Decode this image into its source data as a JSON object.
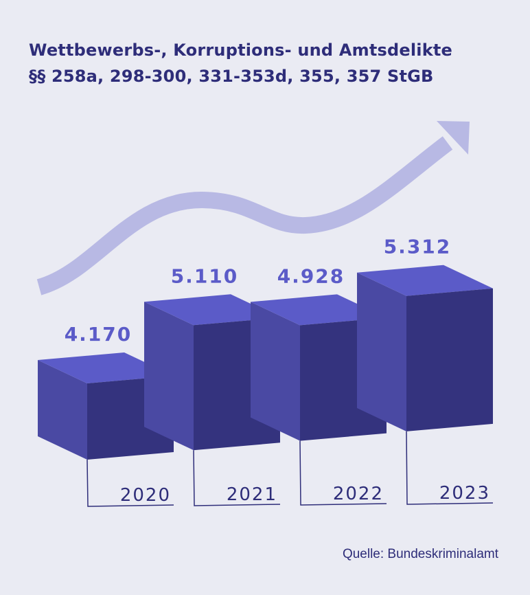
{
  "title_line1": "Wettbewerbs-, Korruptions- und Amtsdelikte",
  "title_line2": "§§ 258a, 298-300, 331-353d, 355, 357 StGB",
  "source": "Quelle: Bundeskriminalamt",
  "chart_data": {
    "type": "bar",
    "style": "3d-cubes with upward trend arrow",
    "categories": [
      "2020",
      "2021",
      "2022",
      "2023"
    ],
    "values": [
      4170,
      5110,
      4928,
      5312
    ],
    "value_labels": [
      "4.170",
      "5.110",
      "4.928",
      "5.312"
    ],
    "title": "Wettbewerbs-, Korruptions- und Amtsdelikte §§ 258a, 298-300, 331-353d, 355, 357 StGB",
    "xlabel": "",
    "ylabel": "",
    "grid": false,
    "colors": {
      "background": "#eaebf3",
      "cube_top": "#5b5bc8",
      "cube_side": "#4a49a3",
      "cube_front": "#34337e",
      "value_label": "#5b5bc8",
      "year_label": "#2e2d79",
      "trend_arrow": "#b8b9e4"
    }
  }
}
